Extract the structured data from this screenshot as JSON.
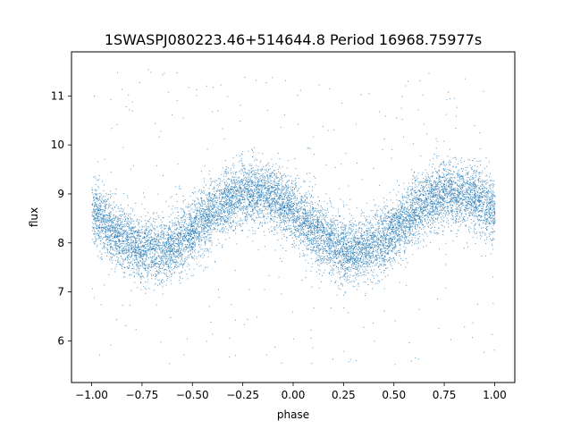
{
  "chart_data": {
    "type": "scatter",
    "title": "1SWASPJ080223.46+514644.8 Period 16968.75977s",
    "xlabel": "phase",
    "ylabel": "flux",
    "xlim": [
      -1.1,
      1.1
    ],
    "ylim": [
      5.15,
      11.9
    ],
    "xticks": [
      -1.0,
      -0.75,
      -0.5,
      -0.25,
      0.0,
      0.25,
      0.5,
      0.75,
      1.0
    ],
    "xtick_labels": [
      "−1.00",
      "−0.75",
      "−0.50",
      "−0.25",
      "0.00",
      "0.25",
      "0.50",
      "0.75",
      "1.00"
    ],
    "yticks": [
      6,
      7,
      8,
      9,
      10,
      11
    ],
    "ytick_labels": [
      "6",
      "7",
      "8",
      "9",
      "10",
      "11"
    ],
    "grid": false,
    "point_color": "#1f77b4",
    "series": [
      {
        "phase_range": [
          -1.0,
          1.0
        ],
        "mean_flux": 8.45,
        "amplitude": 0.6,
        "max_phase": -0.2,
        "min_phase": 0.3,
        "points_per_period": 1,
        "scatter_sd": 0.32,
        "outlier_range": [
          5.5,
          11.6
        ]
      }
    ]
  }
}
